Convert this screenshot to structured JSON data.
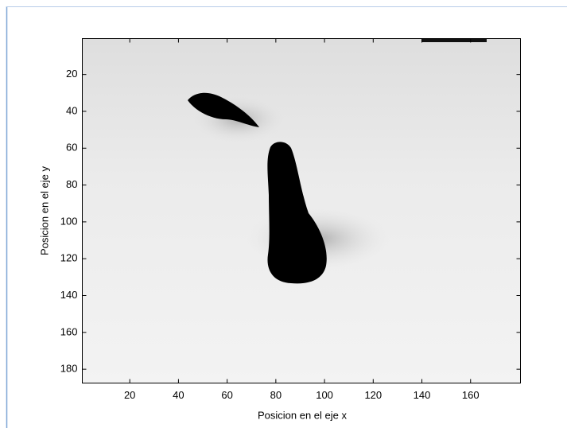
{
  "chart_data": {
    "type": "image",
    "xlabel": "Posicion en el eje x",
    "ylabel": "Posicion en el eje y",
    "xlim": [
      0.5,
      180.5
    ],
    "ylim": [
      0.5,
      187.5
    ],
    "y_reversed": true,
    "xticks": [
      20,
      40,
      60,
      80,
      100,
      120,
      140,
      160
    ],
    "yticks": [
      20,
      40,
      60,
      80,
      100,
      120,
      140,
      160,
      180
    ]
  }
}
